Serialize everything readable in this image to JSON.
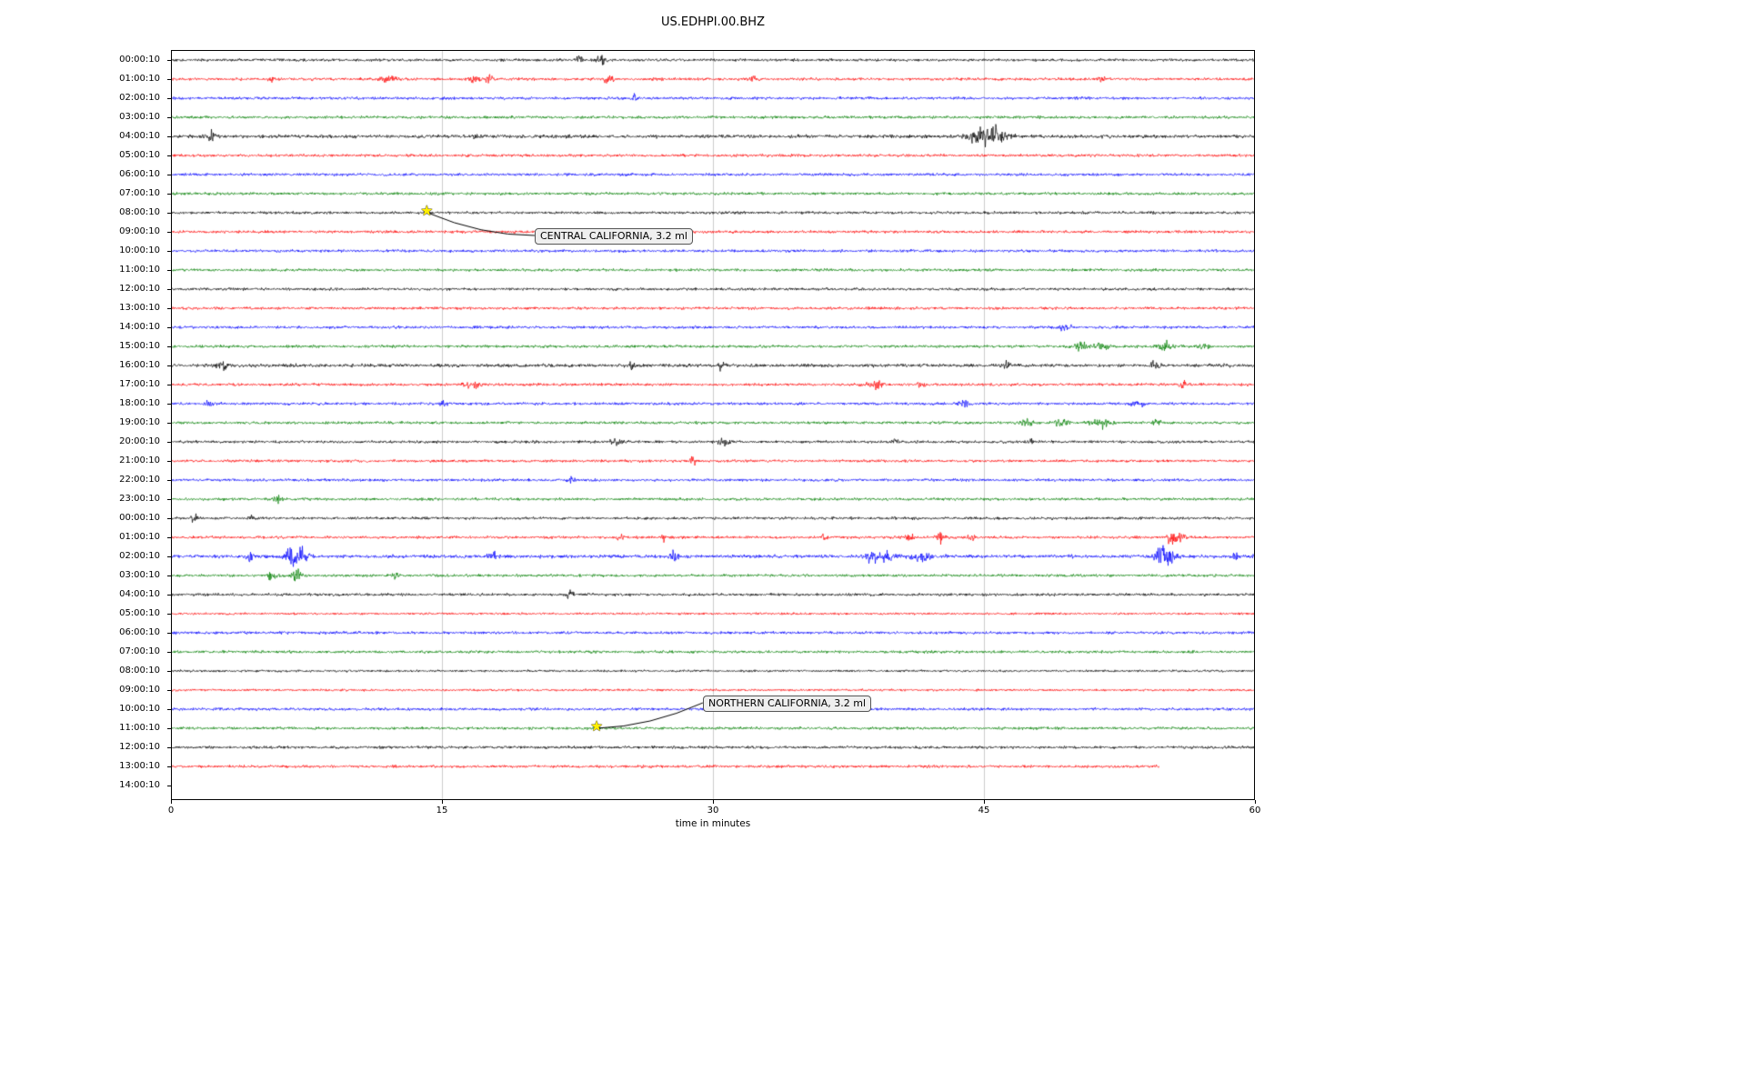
{
  "chart_data": {
    "type": "line",
    "subtype": "seismogram-dayplot",
    "title": "US.EDHPI.00.BHZ",
    "xlabel": "time in minutes",
    "x_range": [
      0,
      60
    ],
    "x_ticks": [
      0,
      15,
      30,
      45,
      60
    ],
    "grid_minutes": [
      15,
      30,
      45
    ],
    "grid_color": "#cccccc",
    "trace_colors_cycle": [
      "#000000",
      "#ff0000",
      "#0000ff",
      "#008000"
    ],
    "rows": [
      {
        "label": "00:00:10",
        "color": "#000000"
      },
      {
        "label": "01:00:10",
        "color": "#ff0000"
      },
      {
        "label": "02:00:10",
        "color": "#0000ff"
      },
      {
        "label": "03:00:10",
        "color": "#008000"
      },
      {
        "label": "04:00:10",
        "color": "#000000",
        "base": 1.9
      },
      {
        "label": "05:00:10",
        "color": "#ff0000"
      },
      {
        "label": "06:00:10",
        "color": "#0000ff"
      },
      {
        "label": "07:00:10",
        "color": "#008000"
      },
      {
        "label": "08:00:10",
        "color": "#000000"
      },
      {
        "label": "09:00:10",
        "color": "#ff0000"
      },
      {
        "label": "10:00:10",
        "color": "#0000ff"
      },
      {
        "label": "11:00:10",
        "color": "#008000"
      },
      {
        "label": "12:00:10",
        "color": "#000000"
      },
      {
        "label": "13:00:10",
        "color": "#ff0000"
      },
      {
        "label": "14:00:10",
        "color": "#0000ff"
      },
      {
        "label": "15:00:10",
        "color": "#008000"
      },
      {
        "label": "16:00:10",
        "color": "#000000",
        "base": 1.8
      },
      {
        "label": "17:00:10",
        "color": "#ff0000"
      },
      {
        "label": "18:00:10",
        "color": "#0000ff"
      },
      {
        "label": "19:00:10",
        "color": "#008000"
      },
      {
        "label": "20:00:10",
        "color": "#000000"
      },
      {
        "label": "21:00:10",
        "color": "#ff0000"
      },
      {
        "label": "22:00:10",
        "color": "#0000ff"
      },
      {
        "label": "23:00:10",
        "color": "#008000"
      },
      {
        "label": "00:00:10",
        "color": "#000000"
      },
      {
        "label": "01:00:10",
        "color": "#ff0000"
      },
      {
        "label": "02:00:10",
        "color": "#0000ff",
        "base": 1.9
      },
      {
        "label": "03:00:10",
        "color": "#008000"
      },
      {
        "label": "04:00:10",
        "color": "#000000"
      },
      {
        "label": "05:00:10",
        "color": "#ff0000",
        "base": 1.2
      },
      {
        "label": "06:00:10",
        "color": "#0000ff"
      },
      {
        "label": "07:00:10",
        "color": "#008000"
      },
      {
        "label": "08:00:10",
        "color": "#000000",
        "base": 1.2
      },
      {
        "label": "09:00:10",
        "color": "#ff0000",
        "base": 1.2
      },
      {
        "label": "10:00:10",
        "color": "#0000ff"
      },
      {
        "label": "11:00:10",
        "color": "#008000"
      },
      {
        "label": "12:00:10",
        "color": "#000000"
      },
      {
        "label": "13:00:10",
        "color": "#ff0000",
        "end_minute": 54.7
      },
      {
        "label": "14:00:10",
        "color": "#000000",
        "trace": false
      }
    ],
    "events": [
      {
        "label": "CENTRAL CALIFORNIA, 3.2 ml",
        "row_index": 8,
        "row_label": "08:00:10",
        "minute": 14.2
      },
      {
        "label": "NORTHERN CALIFORNIA, 3.2 ml",
        "row_index": 35,
        "row_label": "11:00:10",
        "minute": 23.6
      }
    ],
    "bursts": [
      {
        "row": 0,
        "min": 22.6,
        "amp": 3.0,
        "w": 0.15
      },
      {
        "row": 0,
        "min": 23.8,
        "amp": 3.5,
        "w": 0.2
      },
      {
        "row": 1,
        "min": 5.5,
        "amp": 2.5,
        "w": 0.1
      },
      {
        "row": 1,
        "min": 11.8,
        "amp": 3.0,
        "w": 0.25
      },
      {
        "row": 1,
        "min": 12.4,
        "amp": 2.5,
        "w": 0.15
      },
      {
        "row": 1,
        "min": 16.9,
        "amp": 3.5,
        "w": 0.2
      },
      {
        "row": 1,
        "min": 17.6,
        "amp": 3.0,
        "w": 0.15
      },
      {
        "row": 1,
        "min": 24.2,
        "amp": 2.5,
        "w": 0.2
      },
      {
        "row": 1,
        "min": 32.2,
        "amp": 2.2,
        "w": 0.1
      },
      {
        "row": 1,
        "min": 51.5,
        "amp": 2.2,
        "w": 0.15
      },
      {
        "row": 2,
        "min": 25.6,
        "amp": 3.0,
        "w": 0.1
      },
      {
        "row": 4,
        "min": 2.2,
        "amp": 2.5,
        "w": 0.2
      },
      {
        "row": 4,
        "min": 16.8,
        "amp": 2.0,
        "w": 0.1
      },
      {
        "row": 4,
        "min": 44.9,
        "amp": 5.0,
        "w": 0.5
      },
      {
        "row": 4,
        "min": 45.8,
        "amp": 4.0,
        "w": 0.4
      },
      {
        "row": 14,
        "min": 49.5,
        "amp": 2.2,
        "w": 0.3
      },
      {
        "row": 15,
        "min": 50.4,
        "amp": 5.0,
        "w": 0.2
      },
      {
        "row": 15,
        "min": 51.5,
        "amp": 2.5,
        "w": 0.3
      },
      {
        "row": 15,
        "min": 55.0,
        "amp": 3.5,
        "w": 0.3
      },
      {
        "row": 15,
        "min": 57.2,
        "amp": 2.5,
        "w": 0.2
      },
      {
        "row": 16,
        "min": 2.8,
        "amp": 2.5,
        "w": 0.2
      },
      {
        "row": 16,
        "min": 25.5,
        "amp": 2.5,
        "w": 0.15
      },
      {
        "row": 16,
        "min": 30.5,
        "amp": 3.0,
        "w": 0.12
      },
      {
        "row": 16,
        "min": 46.3,
        "amp": 2.0,
        "w": 0.15
      },
      {
        "row": 16,
        "min": 54.5,
        "amp": 2.5,
        "w": 0.2
      },
      {
        "row": 17,
        "min": 16.6,
        "amp": 2.5,
        "w": 0.3
      },
      {
        "row": 17,
        "min": 39.0,
        "amp": 2.5,
        "w": 0.3
      },
      {
        "row": 17,
        "min": 41.5,
        "amp": 2.2,
        "w": 0.2
      },
      {
        "row": 17,
        "min": 56.0,
        "amp": 2.5,
        "w": 0.15
      },
      {
        "row": 18,
        "min": 2.1,
        "amp": 2.5,
        "w": 0.15
      },
      {
        "row": 18,
        "min": 15.1,
        "amp": 2.2,
        "w": 0.15
      },
      {
        "row": 18,
        "min": 43.9,
        "amp": 2.8,
        "w": 0.2
      },
      {
        "row": 18,
        "min": 53.5,
        "amp": 2.5,
        "w": 0.25
      },
      {
        "row": 19,
        "min": 47.3,
        "amp": 3.0,
        "w": 0.25
      },
      {
        "row": 19,
        "min": 49.3,
        "amp": 2.5,
        "w": 0.3
      },
      {
        "row": 19,
        "min": 51.5,
        "amp": 3.0,
        "w": 0.4
      },
      {
        "row": 19,
        "min": 54.6,
        "amp": 2.8,
        "w": 0.2
      },
      {
        "row": 20,
        "min": 24.7,
        "amp": 2.8,
        "w": 0.25
      },
      {
        "row": 20,
        "min": 30.6,
        "amp": 2.8,
        "w": 0.2
      },
      {
        "row": 20,
        "min": 40.1,
        "amp": 2.0,
        "w": 0.15
      },
      {
        "row": 20,
        "min": 47.6,
        "amp": 2.2,
        "w": 0.15
      },
      {
        "row": 21,
        "min": 28.9,
        "amp": 2.8,
        "w": 0.12
      },
      {
        "row": 22,
        "min": 22.2,
        "amp": 2.5,
        "w": 0.15
      },
      {
        "row": 23,
        "min": 5.9,
        "amp": 2.5,
        "w": 0.2
      },
      {
        "row": 24,
        "min": 1.3,
        "amp": 2.8,
        "w": 0.12
      },
      {
        "row": 24,
        "min": 4.4,
        "amp": 2.2,
        "w": 0.1
      },
      {
        "row": 25,
        "min": 24.9,
        "amp": 2.5,
        "w": 0.15
      },
      {
        "row": 25,
        "min": 27.3,
        "amp": 2.2,
        "w": 0.12
      },
      {
        "row": 25,
        "min": 36.1,
        "amp": 2.2,
        "w": 0.12
      },
      {
        "row": 25,
        "min": 40.9,
        "amp": 3.0,
        "w": 0.15
      },
      {
        "row": 25,
        "min": 42.6,
        "amp": 3.5,
        "w": 0.15
      },
      {
        "row": 25,
        "min": 44.3,
        "amp": 2.8,
        "w": 0.12
      },
      {
        "row": 25,
        "min": 55.4,
        "amp": 7.0,
        "w": 0.18
      },
      {
        "row": 25,
        "min": 55.9,
        "amp": 3.5,
        "w": 0.2
      },
      {
        "row": 26,
        "min": 4.3,
        "amp": 3.0,
        "w": 0.15
      },
      {
        "row": 26,
        "min": 6.6,
        "amp": 7.0,
        "w": 0.2
      },
      {
        "row": 26,
        "min": 7.2,
        "amp": 4.5,
        "w": 0.25
      },
      {
        "row": 26,
        "min": 17.8,
        "amp": 2.8,
        "w": 0.15
      },
      {
        "row": 26,
        "min": 27.8,
        "amp": 3.0,
        "w": 0.2
      },
      {
        "row": 26,
        "min": 38.8,
        "amp": 3.5,
        "w": 0.3
      },
      {
        "row": 26,
        "min": 39.7,
        "amp": 3.2,
        "w": 0.25
      },
      {
        "row": 26,
        "min": 41.5,
        "amp": 3.0,
        "w": 0.3
      },
      {
        "row": 26,
        "min": 54.8,
        "amp": 6.0,
        "w": 0.2
      },
      {
        "row": 26,
        "min": 55.3,
        "amp": 4.0,
        "w": 0.25
      },
      {
        "row": 26,
        "min": 58.9,
        "amp": 2.5,
        "w": 0.15
      },
      {
        "row": 27,
        "min": 5.6,
        "amp": 5.5,
        "w": 0.15
      },
      {
        "row": 27,
        "min": 7.0,
        "amp": 4.5,
        "w": 0.2
      },
      {
        "row": 27,
        "min": 12.4,
        "amp": 2.2,
        "w": 0.1
      },
      {
        "row": 28,
        "min": 22.1,
        "amp": 2.5,
        "w": 0.15
      }
    ]
  }
}
